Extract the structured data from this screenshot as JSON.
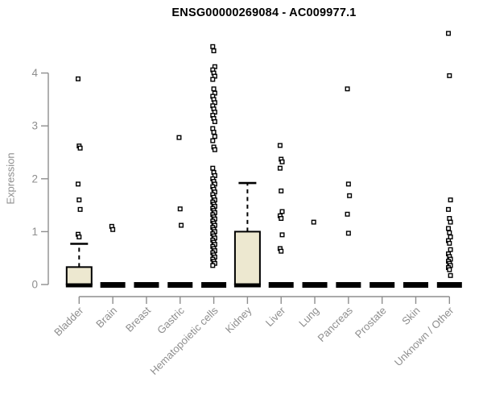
{
  "chart_data": {
    "type": "boxplot",
    "title": "ENSG00000269084 - AC009977.1",
    "ylabel": "Expression",
    "xlabel": "",
    "ylim": [
      0,
      4.75
    ],
    "yticks": [
      0,
      1,
      2,
      3,
      4
    ],
    "grid": false,
    "legend": "none",
    "colors": {
      "box_fill": "#EDE8D0",
      "box_stroke": "#000000",
      "outlier": "#000000",
      "axis": "#8e8e8e",
      "tick_label": "#8e8e8e",
      "title": "#000000"
    },
    "categories": [
      "Bladder",
      "Brain",
      "Breast",
      "Gastric",
      "Hematopoietic cells",
      "Kidney",
      "Liver",
      "Lung",
      "Pancreas",
      "Prostate",
      "Skin",
      "Unknown / Other"
    ],
    "series": [
      {
        "name": "Bladder",
        "q1": 0,
        "median": 0,
        "q3": 0.33,
        "whisker_low": 0,
        "whisker_high": 0.77,
        "outliers": [
          3.89,
          2.62,
          2.58,
          1.9,
          1.6,
          1.42,
          0.95,
          0.9
        ]
      },
      {
        "name": "Brain",
        "q1": 0,
        "median": 0,
        "q3": 0,
        "whisker_low": 0,
        "whisker_high": 0,
        "outliers": [
          1.1,
          1.04
        ]
      },
      {
        "name": "Breast",
        "q1": 0,
        "median": 0,
        "q3": 0,
        "whisker_low": 0,
        "whisker_high": 0,
        "outliers": []
      },
      {
        "name": "Gastric",
        "q1": 0,
        "median": 0,
        "q3": 0,
        "whisker_low": 0,
        "whisker_high": 0,
        "outliers": [
          2.78,
          1.43,
          1.12
        ]
      },
      {
        "name": "Hematopoietic cells",
        "q1": 0,
        "median": 0,
        "q3": 0,
        "whisker_low": 0,
        "whisker_high": 0,
        "outliers": [
          4.5,
          4.42,
          4.12,
          4.06,
          4.0,
          3.94,
          3.88,
          3.7,
          3.62,
          3.56,
          3.5,
          3.44,
          3.38,
          3.32,
          3.26,
          3.2,
          3.14,
          3.08,
          2.95,
          2.88,
          2.8,
          2.72,
          2.6,
          2.55,
          2.2,
          2.12,
          2.06,
          2.0,
          1.95,
          1.9,
          1.85,
          1.8,
          1.75,
          1.7,
          1.65,
          1.6,
          1.56,
          1.52,
          1.48,
          1.44,
          1.4,
          1.36,
          1.32,
          1.28,
          1.24,
          1.2,
          1.16,
          1.12,
          1.08,
          1.04,
          1.0,
          0.96,
          0.92,
          0.88,
          0.84,
          0.8,
          0.76,
          0.72,
          0.68,
          0.64,
          0.6,
          0.56,
          0.52,
          0.48,
          0.44,
          0.4,
          0.36
        ]
      },
      {
        "name": "Kidney",
        "q1": 0,
        "median": 0,
        "q3": 1.0,
        "whisker_low": 0,
        "whisker_high": 1.92,
        "outliers": []
      },
      {
        "name": "Liver",
        "q1": 0,
        "median": 0,
        "q3": 0,
        "whisker_low": 0,
        "whisker_high": 0,
        "outliers": [
          2.63,
          2.37,
          2.32,
          2.2,
          1.77,
          1.38,
          1.3,
          1.25,
          0.94,
          0.68,
          0.63
        ]
      },
      {
        "name": "Lung",
        "q1": 0,
        "median": 0,
        "q3": 0,
        "whisker_low": 0,
        "whisker_high": 0,
        "outliers": [
          1.18
        ]
      },
      {
        "name": "Pancreas",
        "q1": 0,
        "median": 0,
        "q3": 0,
        "whisker_low": 0,
        "whisker_high": 0,
        "outliers": [
          3.7,
          1.9,
          1.68,
          1.33,
          0.97
        ]
      },
      {
        "name": "Prostate",
        "q1": 0,
        "median": 0,
        "q3": 0,
        "whisker_low": 0,
        "whisker_high": 0,
        "outliers": []
      },
      {
        "name": "Skin",
        "q1": 0,
        "median": 0,
        "q3": 0,
        "whisker_low": 0,
        "whisker_high": 0,
        "outliers": []
      },
      {
        "name": "Unknown / Other",
        "q1": 0,
        "median": 0,
        "q3": 0,
        "whisker_low": 0,
        "whisker_high": 0,
        "outliers": [
          4.75,
          3.95,
          1.6,
          1.42,
          1.25,
          1.18,
          1.06,
          0.98,
          0.9,
          0.83,
          0.78,
          0.66,
          0.58,
          0.53,
          0.48,
          0.44,
          0.4,
          0.36,
          0.32,
          0.28,
          0.17
        ]
      }
    ]
  }
}
